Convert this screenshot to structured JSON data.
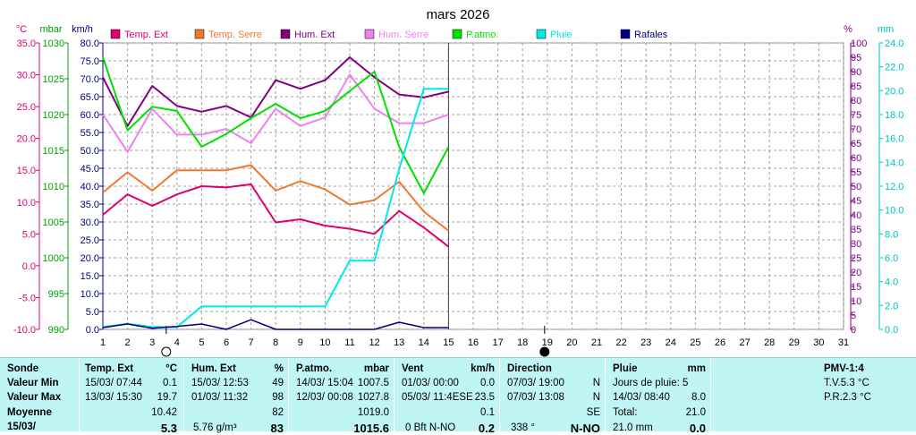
{
  "chart_data": {
    "type": "line",
    "title": "mars 2026",
    "x": [
      1,
      2,
      3,
      4,
      5,
      6,
      7,
      8,
      9,
      10,
      11,
      12,
      13,
      14,
      15
    ],
    "x_ticks": [
      1,
      2,
      3,
      4,
      5,
      6,
      7,
      8,
      9,
      10,
      11,
      12,
      13,
      14,
      15,
      16,
      17,
      18,
      19,
      20,
      21,
      22,
      23,
      24,
      25,
      26,
      27,
      28,
      29,
      30,
      31
    ],
    "xlim": [
      1,
      31
    ],
    "axes": {
      "temp": {
        "unit": "°C",
        "color": "#e0006e",
        "ticks": [
          "35.0",
          "30.0",
          "25.0",
          "20.0",
          "15.0",
          "10.0",
          "5.0",
          "0.0",
          "-5.0",
          "-10.0"
        ],
        "ylim": [
          -10,
          35
        ]
      },
      "pressure": {
        "unit": "mbar",
        "color": "#00a000",
        "ticks": [
          "1030",
          "1025",
          "1020",
          "1015",
          "1010",
          "1005",
          "1000",
          "995",
          "990"
        ],
        "ylim": [
          990,
          1030
        ]
      },
      "wind": {
        "unit": "km/h",
        "color": "#000080",
        "ticks": [
          "80.0",
          "75.0",
          "70.0",
          "65.0",
          "60.0",
          "55.0",
          "50.0",
          "45.0",
          "40.0",
          "35.0",
          "30.0",
          "25.0",
          "20.0",
          "15.0",
          "10.0",
          "5.0",
          "0.0"
        ],
        "ylim": [
          0,
          80
        ]
      },
      "humidity": {
        "unit": "%",
        "color": "#800080",
        "ticks": [
          "100",
          "95",
          "90",
          "85",
          "80",
          "75",
          "70",
          "65",
          "60",
          "55",
          "50",
          "45",
          "40",
          "35",
          "30",
          "25",
          "20",
          "15",
          "10",
          "5",
          "0"
        ],
        "ylim": [
          0,
          100
        ]
      },
      "rain": {
        "unit": "mm",
        "color": "#00c0c0",
        "ticks": [
          "24.0",
          "22.0",
          "20.0",
          "18.0",
          "16.0",
          "14.0",
          "12.0",
          "10.0",
          "8.0",
          "6.0",
          "4.0",
          "2.0",
          "0.0"
        ],
        "ylim": [
          0,
          25
        ]
      }
    },
    "grid": true,
    "legend_position": "top",
    "series": [
      {
        "name": "Temp. Ext",
        "axis": "temp",
        "color": "#e0006e",
        "values": [
          8.0,
          11.2,
          9.4,
          11.2,
          12.5,
          12.3,
          12.8,
          6.8,
          7.3,
          6.3,
          5.8,
          5.0,
          8.6,
          6.0,
          3.0
        ]
      },
      {
        "name": "Temp. Serre",
        "axis": "temp",
        "color": "#f07830",
        "values": [
          11.5,
          14.7,
          11.8,
          15.0,
          15.0,
          15.0,
          15.8,
          11.8,
          13.3,
          12.0,
          9.6,
          10.3,
          13.2,
          8.5,
          5.5
        ]
      },
      {
        "name": "Hum. Ext",
        "axis": "humidity",
        "color": "#800080",
        "values": [
          88,
          71,
          85,
          78,
          76,
          78,
          74,
          87,
          84,
          87,
          95,
          88,
          82,
          81,
          83
        ]
      },
      {
        "name": "Hum. Serre",
        "axis": "humidity",
        "color": "#f080f0",
        "values": [
          75,
          62,
          77,
          68,
          68,
          70,
          65,
          77,
          71,
          74,
          89,
          77,
          72,
          72,
          75
        ]
      },
      {
        "name": "P.atmo.",
        "axis": "pressure",
        "color": "#00e000",
        "values": [
          1028,
          1017.8,
          1021.1,
          1020.5,
          1015.5,
          1017.3,
          1019.5,
          1021.5,
          1019.5,
          1020.5,
          1023.3,
          1026.0,
          1015.5,
          1009.0,
          1015.5
        ]
      },
      {
        "name": "Pluie",
        "axis": "rain",
        "color": "#00e8e8",
        "values": [
          0.2,
          0.5,
          0.2,
          0.2,
          2.0,
          2.0,
          2.0,
          2.0,
          2.0,
          2.0,
          6.0,
          6.0,
          14.0,
          21.0,
          21.0
        ]
      },
      {
        "name": "Rafales",
        "axis": "wind",
        "color": "#000080",
        "values": [
          0.5,
          1.5,
          0.3,
          0.8,
          1.5,
          0,
          2.7,
          0,
          0,
          0,
          0,
          0,
          2.0,
          0.5,
          0.5
        ]
      }
    ],
    "markers": [
      {
        "type": "moon-first-quarter",
        "x": 4
      },
      {
        "type": "moon-full",
        "x": 19
      }
    ]
  },
  "panel": {
    "rows": [
      "Sonde",
      "Valeur Min",
      "Valeur Max",
      "Moyenne",
      "15/03/"
    ],
    "temp": {
      "title": "Temp. Ext",
      "unit": "°C",
      "min_date": "15/03/ 07:44",
      "min_val": "0.1",
      "max_date": "13/03/ 15:30",
      "max_val": "19.7",
      "avg": "10.42",
      "cur_extra": "",
      "cur": "5.3"
    },
    "hum": {
      "title": "Hum. Ext",
      "unit": "%",
      "min_date": "15/03/ 12:53",
      "min_val": "49",
      "max_date": "01/03/ 11:32",
      "max_val": "98",
      "avg": "82",
      "cur_extra": "5.76 g/m³",
      "cur": "83"
    },
    "patmo": {
      "title": "P.atmo.",
      "unit": "mbar",
      "min_date": "14/03/ 15:04",
      "min_val": "1007.5",
      "max_date": "12/03/ 00:08",
      "max_val": "1027.8",
      "avg": "1019.0",
      "cur_extra": "",
      "cur": "1015.6"
    },
    "vent": {
      "title": "Vent",
      "unit": "km/h",
      "min_date": "01/03/ 00:00",
      "min_val": "0.0",
      "max_date": "05/03/ 11:4ESE",
      "max_val": "23.5",
      "avg": "0.1",
      "cur_extra": "0 Bft N-NO",
      "cur": "0.2"
    },
    "dir": {
      "title": "Direction",
      "min_date": "07/03/ 19:00",
      "min_val": "N",
      "max_date": "07/03/ 13:08",
      "max_val": "N",
      "avg": "SE",
      "cur_extra": "338 °",
      "cur": "N-NO"
    },
    "pluie": {
      "title": "Pluie",
      "unit": "mm",
      "line1": "Jours de pluie: 5",
      "line2_date": "14/03/ 08:40",
      "line2_val": "8.0",
      "line3_label": "Total:",
      "line3_val": "21.0",
      "cur_extra": "21.0 mm",
      "cur": "0.0"
    },
    "pmv": {
      "title": "PMV-1:4",
      "tv": "T.V.5.3 °C",
      "pr": "P.R.2.3 °C"
    }
  }
}
